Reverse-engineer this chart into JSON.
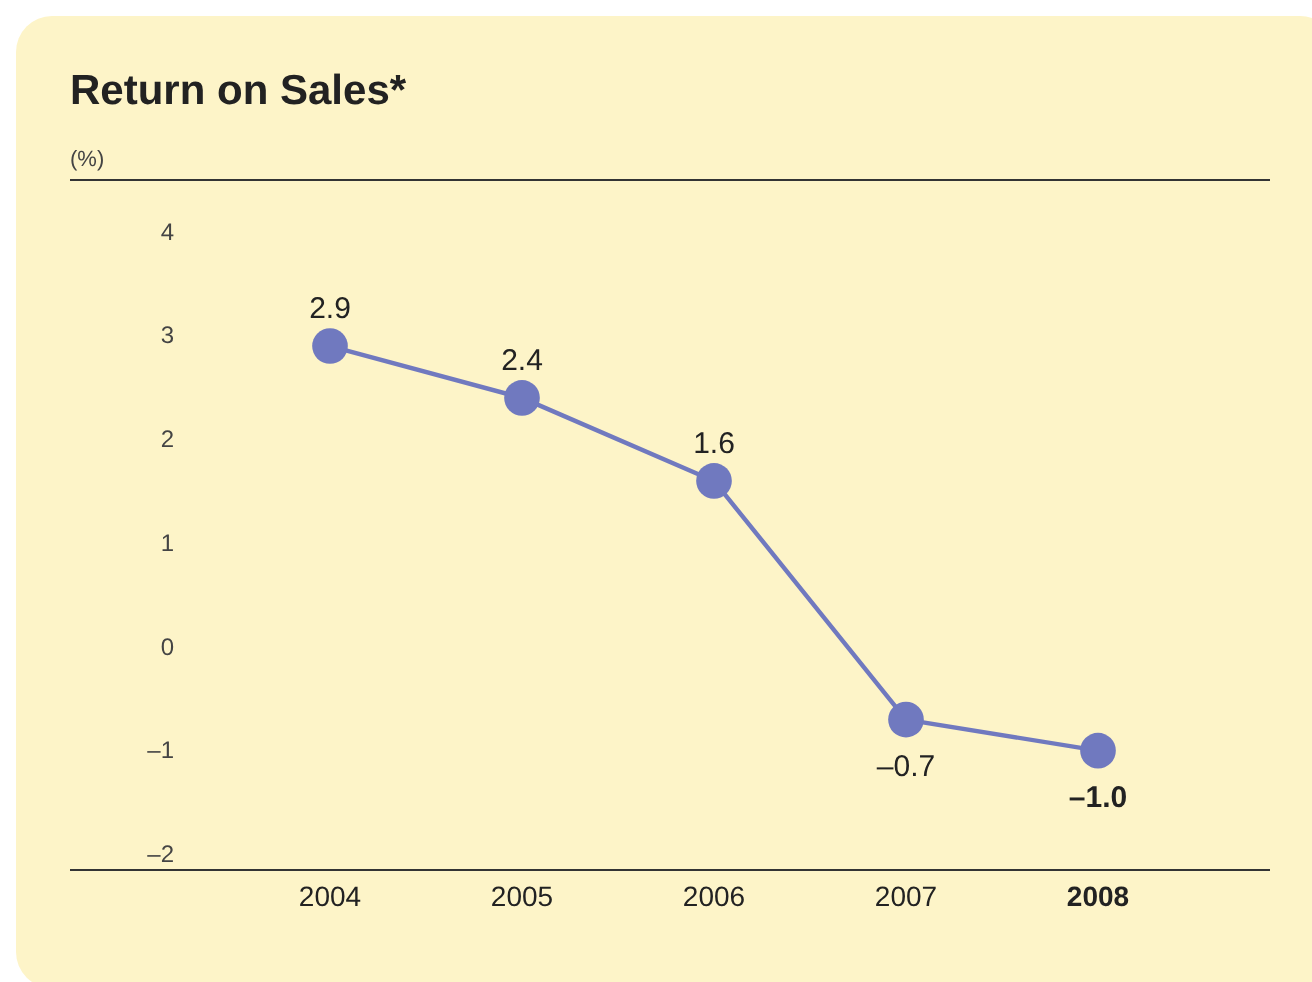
{
  "chart_data": {
    "type": "line",
    "title": "Return on Sales*",
    "ylabel": "(%)",
    "categories": [
      "2004",
      "2005",
      "2006",
      "2007",
      "2008"
    ],
    "series": [
      {
        "color": "#7079bf",
        "values": [
          2.9,
          2.4,
          1.6,
          -0.7,
          -1.0
        ],
        "value_labels": [
          "2.9",
          "2.4",
          "1.6",
          "–0.7",
          "–1.0"
        ]
      }
    ],
    "ylim": [
      -2.15,
      4.5
    ],
    "yticks": [
      {
        "value": -2,
        "label": "–2"
      },
      {
        "value": -1,
        "label": "–1"
      },
      0,
      1,
      2,
      3,
      4
    ],
    "grid": false,
    "marker": "circle",
    "line_style": "solid"
  }
}
